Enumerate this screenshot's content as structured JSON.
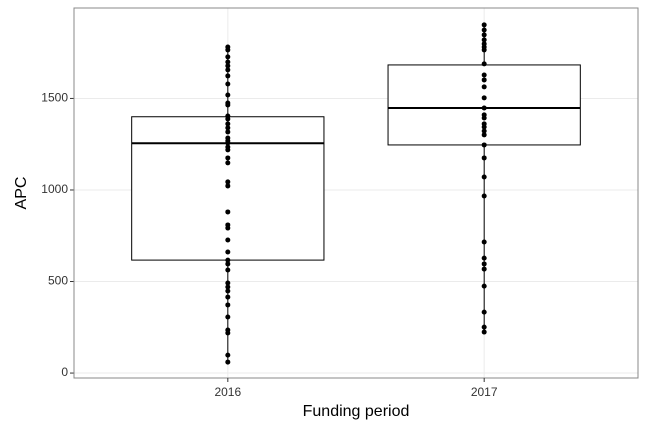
{
  "chart_data": {
    "type": "box",
    "xlabel": "Funding period",
    "ylabel": "APC",
    "categories": [
      "2016",
      "2017"
    ],
    "ylim": [
      -27,
      1994
    ],
    "yticks": [
      0,
      500,
      1000,
      1500
    ],
    "grid": true,
    "color": "#000000",
    "boxes": [
      {
        "min": 60,
        "q1": 617,
        "median": 1255,
        "q3": 1400,
        "max": 1781,
        "points": [
          1781,
          1765,
          1727,
          1699,
          1678,
          1656,
          1623,
          1579,
          1519,
          1475,
          1464,
          1404,
          1388,
          1361,
          1339,
          1317,
          1284,
          1268,
          1257,
          1235,
          1219,
          1175,
          1148,
          1044,
          1022,
          880,
          809,
          792,
          727,
          661,
          617,
          596,
          563,
          492,
          470,
          448,
          415,
          372,
          306,
          235,
          219,
          98,
          60
        ]
      },
      {
        "min": 224,
        "q1": 1246,
        "median": 1448,
        "q3": 1683,
        "max": 1902,
        "points": [
          1902,
          1874,
          1847,
          1820,
          1798,
          1781,
          1765,
          1689,
          1628,
          1601,
          1563,
          1503,
          1448,
          1410,
          1393,
          1361,
          1344,
          1322,
          1301,
          1246,
          1175,
          1071,
          967,
          716,
          628,
          596,
          568,
          475,
          333,
          251,
          224
        ]
      }
    ]
  }
}
